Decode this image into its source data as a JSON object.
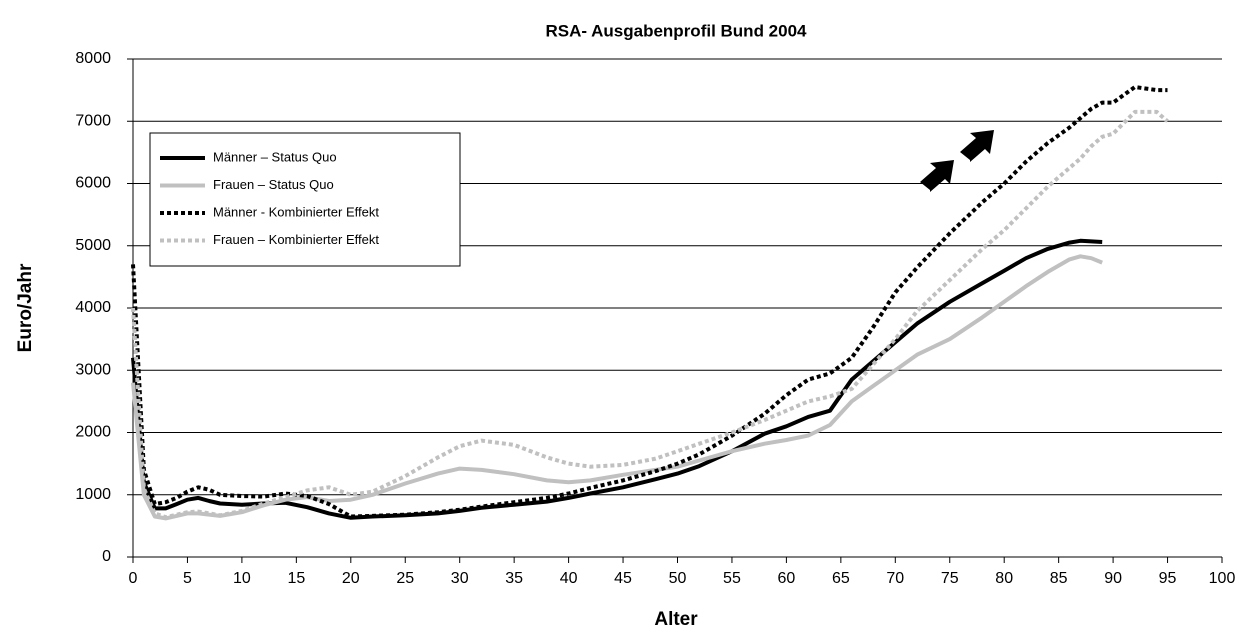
{
  "chart_data": {
    "type": "line",
    "title": "RSA- Ausgabenprofil Bund 2004",
    "xlabel": "Alter",
    "ylabel": "Euro/Jahr",
    "x": [
      0,
      1,
      2,
      3,
      4,
      5,
      6,
      7,
      8,
      10,
      12,
      14,
      16,
      18,
      20,
      22,
      25,
      28,
      30,
      32,
      35,
      38,
      40,
      42,
      45,
      48,
      50,
      52,
      55,
      58,
      60,
      62,
      64,
      66,
      68,
      70,
      72,
      75,
      78,
      80,
      82,
      84,
      86,
      87,
      88,
      89,
      90,
      92,
      94,
      95
    ],
    "series": [
      {
        "name": "Männer – Status Quo",
        "color": "#000000",
        "style": "solid",
        "values": [
          3200,
          1200,
          780,
          780,
          850,
          920,
          950,
          900,
          860,
          840,
          860,
          870,
          800,
          700,
          630,
          650,
          670,
          700,
          740,
          790,
          840,
          890,
          950,
          1020,
          1120,
          1250,
          1340,
          1460,
          1700,
          1980,
          2100,
          2250,
          2350,
          2850,
          3150,
          3450,
          3750,
          4100,
          4400,
          4600,
          4800,
          4950,
          5050,
          5080,
          5070,
          5060,
          null,
          null,
          null,
          null
        ]
      },
      {
        "name": "Frauen – Status Quo",
        "color": "#c0c0c0",
        "style": "solid",
        "values": [
          2800,
          1000,
          650,
          620,
          660,
          700,
          700,
          680,
          660,
          720,
          830,
          920,
          960,
          900,
          920,
          1000,
          1180,
          1340,
          1420,
          1400,
          1330,
          1230,
          1200,
          1230,
          1320,
          1400,
          1450,
          1550,
          1700,
          1820,
          1880,
          1950,
          2120,
          2500,
          2750,
          3000,
          3250,
          3500,
          3850,
          4100,
          4350,
          4580,
          4780,
          4830,
          4800,
          4730,
          null,
          null,
          null,
          null
        ]
      },
      {
        "name": "Männer -  Kombinierter Effekt",
        "color": "#000000",
        "style": "dotted",
        "values": [
          4700,
          1400,
          850,
          880,
          950,
          1050,
          1120,
          1080,
          1000,
          980,
          970,
          1020,
          980,
          850,
          650,
          660,
          680,
          720,
          760,
          810,
          880,
          950,
          1020,
          1110,
          1230,
          1380,
          1500,
          1650,
          1950,
          2300,
          2600,
          2850,
          2950,
          3200,
          3700,
          4250,
          4650,
          5200,
          5700,
          6000,
          6350,
          6650,
          6900,
          7050,
          7200,
          7300,
          7300,
          7550,
          7500,
          7500
        ]
      },
      {
        "name": "Frauen – Kombinierter Effekt",
        "color": "#c0c0c0",
        "style": "dotted",
        "values": [
          4000,
          1100,
          700,
          640,
          680,
          720,
          730,
          700,
          670,
          740,
          860,
          960,
          1070,
          1120,
          1000,
          1050,
          1300,
          1600,
          1780,
          1870,
          1800,
          1600,
          1500,
          1450,
          1480,
          1580,
          1700,
          1820,
          2000,
          2200,
          2350,
          2500,
          2580,
          2700,
          3100,
          3500,
          3950,
          4450,
          4950,
          5250,
          5600,
          5950,
          6250,
          6400,
          6600,
          6750,
          6800,
          7150,
          7150,
          7000
        ]
      }
    ],
    "xlim": [
      0,
      100
    ],
    "xticks": [
      0,
      5,
      10,
      15,
      20,
      25,
      30,
      35,
      40,
      45,
      50,
      55,
      60,
      65,
      70,
      75,
      80,
      85,
      90,
      95,
      100
    ],
    "ylim": [
      0,
      8000
    ],
    "yticks": [
      0,
      1000,
      2000,
      3000,
      4000,
      5000,
      6000,
      7000,
      8000
    ],
    "grid": true,
    "legend": "upper left"
  }
}
